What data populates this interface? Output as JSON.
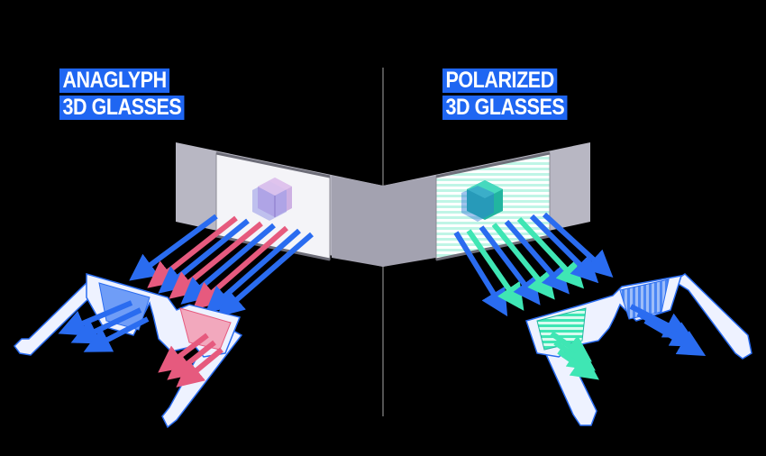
{
  "left_panel": {
    "title_lines": [
      "ANAGLYPH",
      "3D GLASSES"
    ]
  },
  "right_panel": {
    "title_lines": [
      "POLARIZED",
      "3D GLASSES"
    ]
  },
  "colors": {
    "background": "#000000",
    "label_bg": "#1f66f2",
    "label_text": "#ffffff",
    "divider": "#8a8a8a",
    "wall_gray": "#b8b7c3",
    "screen_white": "#f4f4f8",
    "ray_blue": "#2a6cf0",
    "ray_red": "#e65a7e",
    "ray_green": "#3fe6b4",
    "glasses_frame": "#eef2ff",
    "glasses_outline": "#2a6cf0"
  },
  "icons": [
    "cube-icon",
    "arrow-icon",
    "glasses-icon",
    "projection-screen-icon"
  ]
}
